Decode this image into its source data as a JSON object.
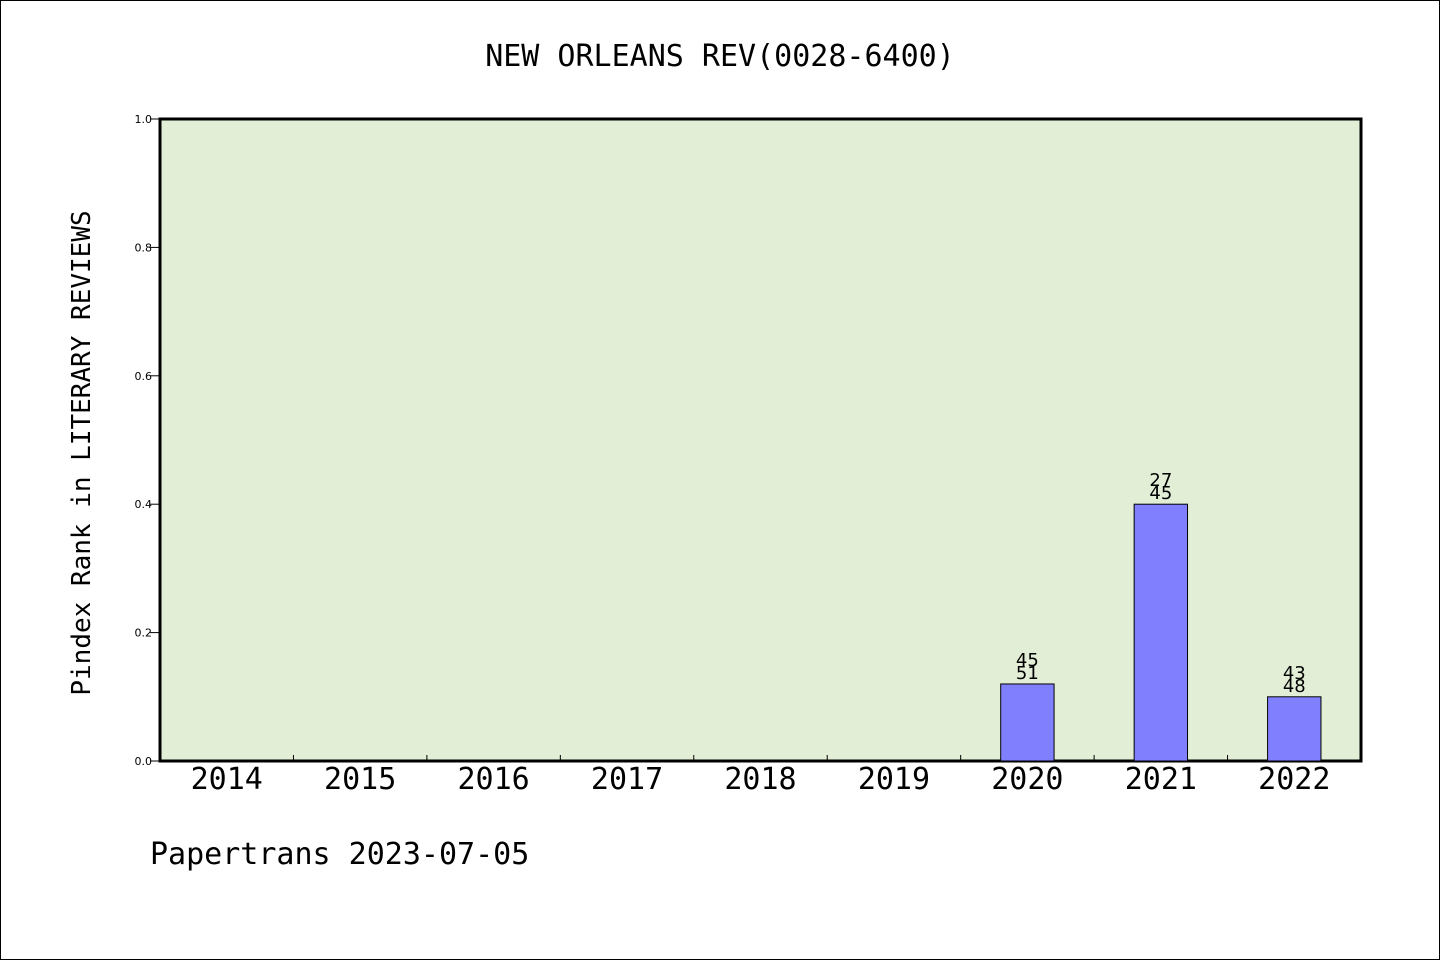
{
  "chart_data": {
    "type": "bar",
    "title": "NEW ORLEANS REV(0028-6400)",
    "ylabel": "Pindex Rank in LITERARY REVIEWS",
    "xlabel": "",
    "categories": [
      "2014",
      "2015",
      "2016",
      "2017",
      "2018",
      "2019",
      "2020",
      "2021",
      "2022"
    ],
    "values": [
      null,
      null,
      null,
      null,
      null,
      null,
      0.12,
      0.4,
      0.1
    ],
    "bar_labels": [
      null,
      null,
      null,
      null,
      null,
      null,
      {
        "top": "45",
        "bottom": "51"
      },
      {
        "top": "27",
        "bottom": "45"
      },
      {
        "top": "43",
        "bottom": "48"
      }
    ],
    "ylim": [
      0,
      1.0
    ],
    "yticks": [
      "0.0",
      "0.2",
      "0.4",
      "0.6",
      "0.8",
      "1.0"
    ],
    "grid": false,
    "legend": "none",
    "colors": {
      "plot_background": "#e2efd6",
      "bar_fill": "#8080ff",
      "axis": "#000000"
    }
  },
  "footer": {
    "source": "Papertrans 2023-07-05"
  }
}
